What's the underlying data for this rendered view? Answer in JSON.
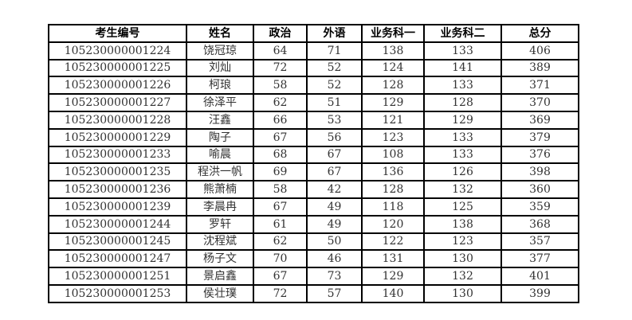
{
  "table": {
    "headers": [
      "考生编号",
      "姓名",
      "政治",
      "外语",
      "业务科一",
      "业务科二",
      "总分"
    ],
    "rows": [
      [
        "105230000001224",
        "饶冠琼",
        "64",
        "71",
        "138",
        "133",
        "406"
      ],
      [
        "105230000001225",
        "刘灿",
        "72",
        "52",
        "124",
        "141",
        "389"
      ],
      [
        "105230000001226",
        "柯琅",
        "58",
        "52",
        "128",
        "133",
        "371"
      ],
      [
        "105230000001227",
        "徐泽平",
        "62",
        "51",
        "129",
        "128",
        "370"
      ],
      [
        "105230000001228",
        "汪鑫",
        "66",
        "53",
        "121",
        "129",
        "369"
      ],
      [
        "105230000001229",
        "陶子",
        "67",
        "56",
        "123",
        "133",
        "379"
      ],
      [
        "105230000001233",
        "喻晨",
        "68",
        "67",
        "108",
        "133",
        "376"
      ],
      [
        "105230000001235",
        "程洪一帆",
        "69",
        "67",
        "136",
        "126",
        "398"
      ],
      [
        "105230000001236",
        "熊萧楠",
        "58",
        "42",
        "128",
        "132",
        "360"
      ],
      [
        "105230000001239",
        "李晨冉",
        "67",
        "49",
        "118",
        "125",
        "359"
      ],
      [
        "105230000001244",
        "罗轩",
        "61",
        "49",
        "120",
        "138",
        "368"
      ],
      [
        "105230000001245",
        "沈程斌",
        "62",
        "50",
        "122",
        "123",
        "357"
      ],
      [
        "105230000001247",
        "杨子文",
        "70",
        "46",
        "131",
        "130",
        "377"
      ],
      [
        "105230000001251",
        "景启鑫",
        "67",
        "73",
        "129",
        "132",
        "401"
      ],
      [
        "105230000001253",
        "侯壮璞",
        "72",
        "57",
        "140",
        "130",
        "399"
      ]
    ]
  }
}
